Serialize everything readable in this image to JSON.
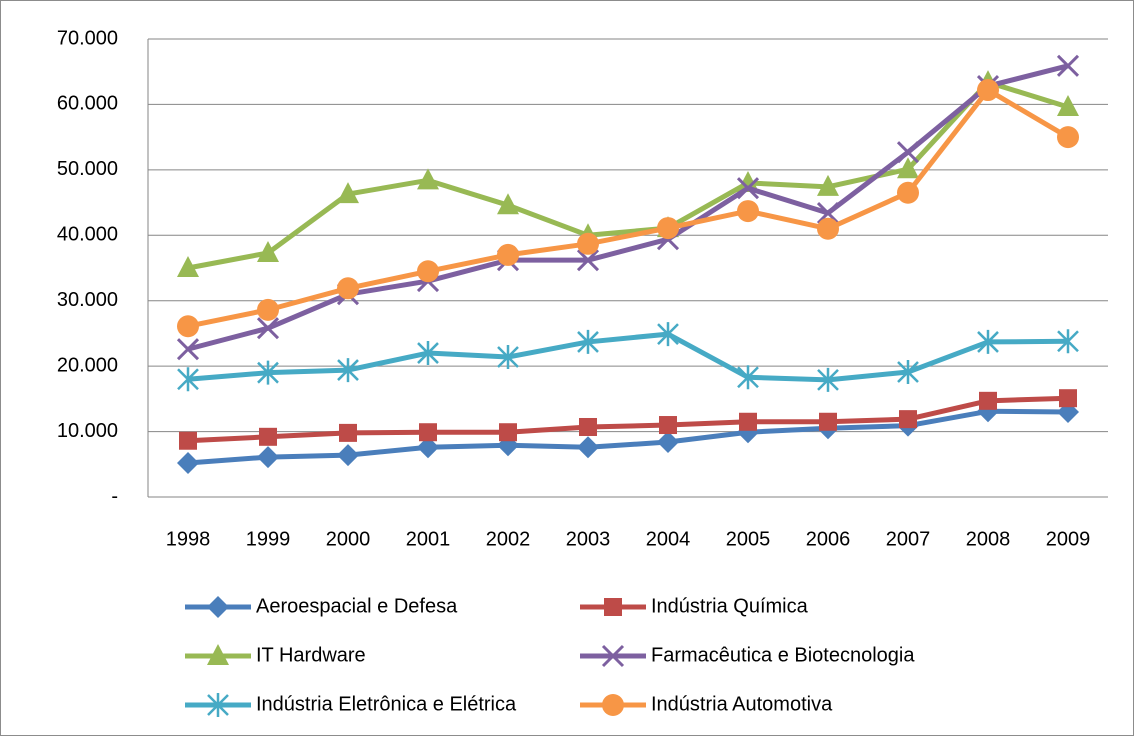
{
  "chart_data": {
    "type": "line",
    "categories": [
      "1998",
      "1999",
      "2000",
      "2001",
      "2002",
      "2003",
      "2004",
      "2005",
      "2006",
      "2007",
      "2008",
      "2009"
    ],
    "series": [
      {
        "name": "Aeroespacial e Defesa",
        "color": "#4a7ebb",
        "marker": "diamond",
        "values": [
          5200,
          6100,
          6400,
          7600,
          7900,
          7600,
          8400,
          9900,
          10500,
          10900,
          13100,
          13000
        ]
      },
      {
        "name": "Indústria Química",
        "color": "#be4b48",
        "marker": "square",
        "values": [
          8600,
          9200,
          9800,
          9900,
          9900,
          10700,
          11000,
          11500,
          11500,
          11900,
          14700,
          15100
        ]
      },
      {
        "name": "IT Hardware",
        "color": "#98b954",
        "marker": "triangle",
        "values": [
          35000,
          37300,
          46300,
          48400,
          44600,
          40000,
          41100,
          48000,
          47400,
          50100,
          63400,
          59600
        ]
      },
      {
        "name": "Farmacêutica e Biotecnologia",
        "color": "#7d60a0",
        "marker": "x",
        "values": [
          22600,
          25800,
          31000,
          33000,
          36200,
          36200,
          39400,
          47200,
          43400,
          52700,
          62800,
          65900
        ]
      },
      {
        "name": "Indústria Eletrônica e Elétrica",
        "color": "#46aac5",
        "marker": "asterisk",
        "values": [
          18000,
          19000,
          19400,
          22000,
          21400,
          23700,
          24900,
          18300,
          17900,
          19100,
          23700,
          23800
        ]
      },
      {
        "name": "Indústria Automotiva",
        "color": "#f79646",
        "marker": "circle",
        "values": [
          26100,
          28600,
          31900,
          34500,
          37000,
          38700,
          41100,
          43700,
          41000,
          46500,
          62200,
          55000
        ]
      }
    ],
    "ylim": [
      0,
      70000
    ],
    "yticks": [
      {
        "value": 0,
        "label": "-"
      },
      {
        "value": 10000,
        "label": "10.000"
      },
      {
        "value": 20000,
        "label": "20.000"
      },
      {
        "value": 30000,
        "label": "30.000"
      },
      {
        "value": 40000,
        "label": "40.000"
      },
      {
        "value": 50000,
        "label": "50.000"
      },
      {
        "value": 60000,
        "label": "60.000"
      },
      {
        "value": 70000,
        "label": "70.000"
      }
    ],
    "grid": true,
    "legend": "bottom"
  }
}
